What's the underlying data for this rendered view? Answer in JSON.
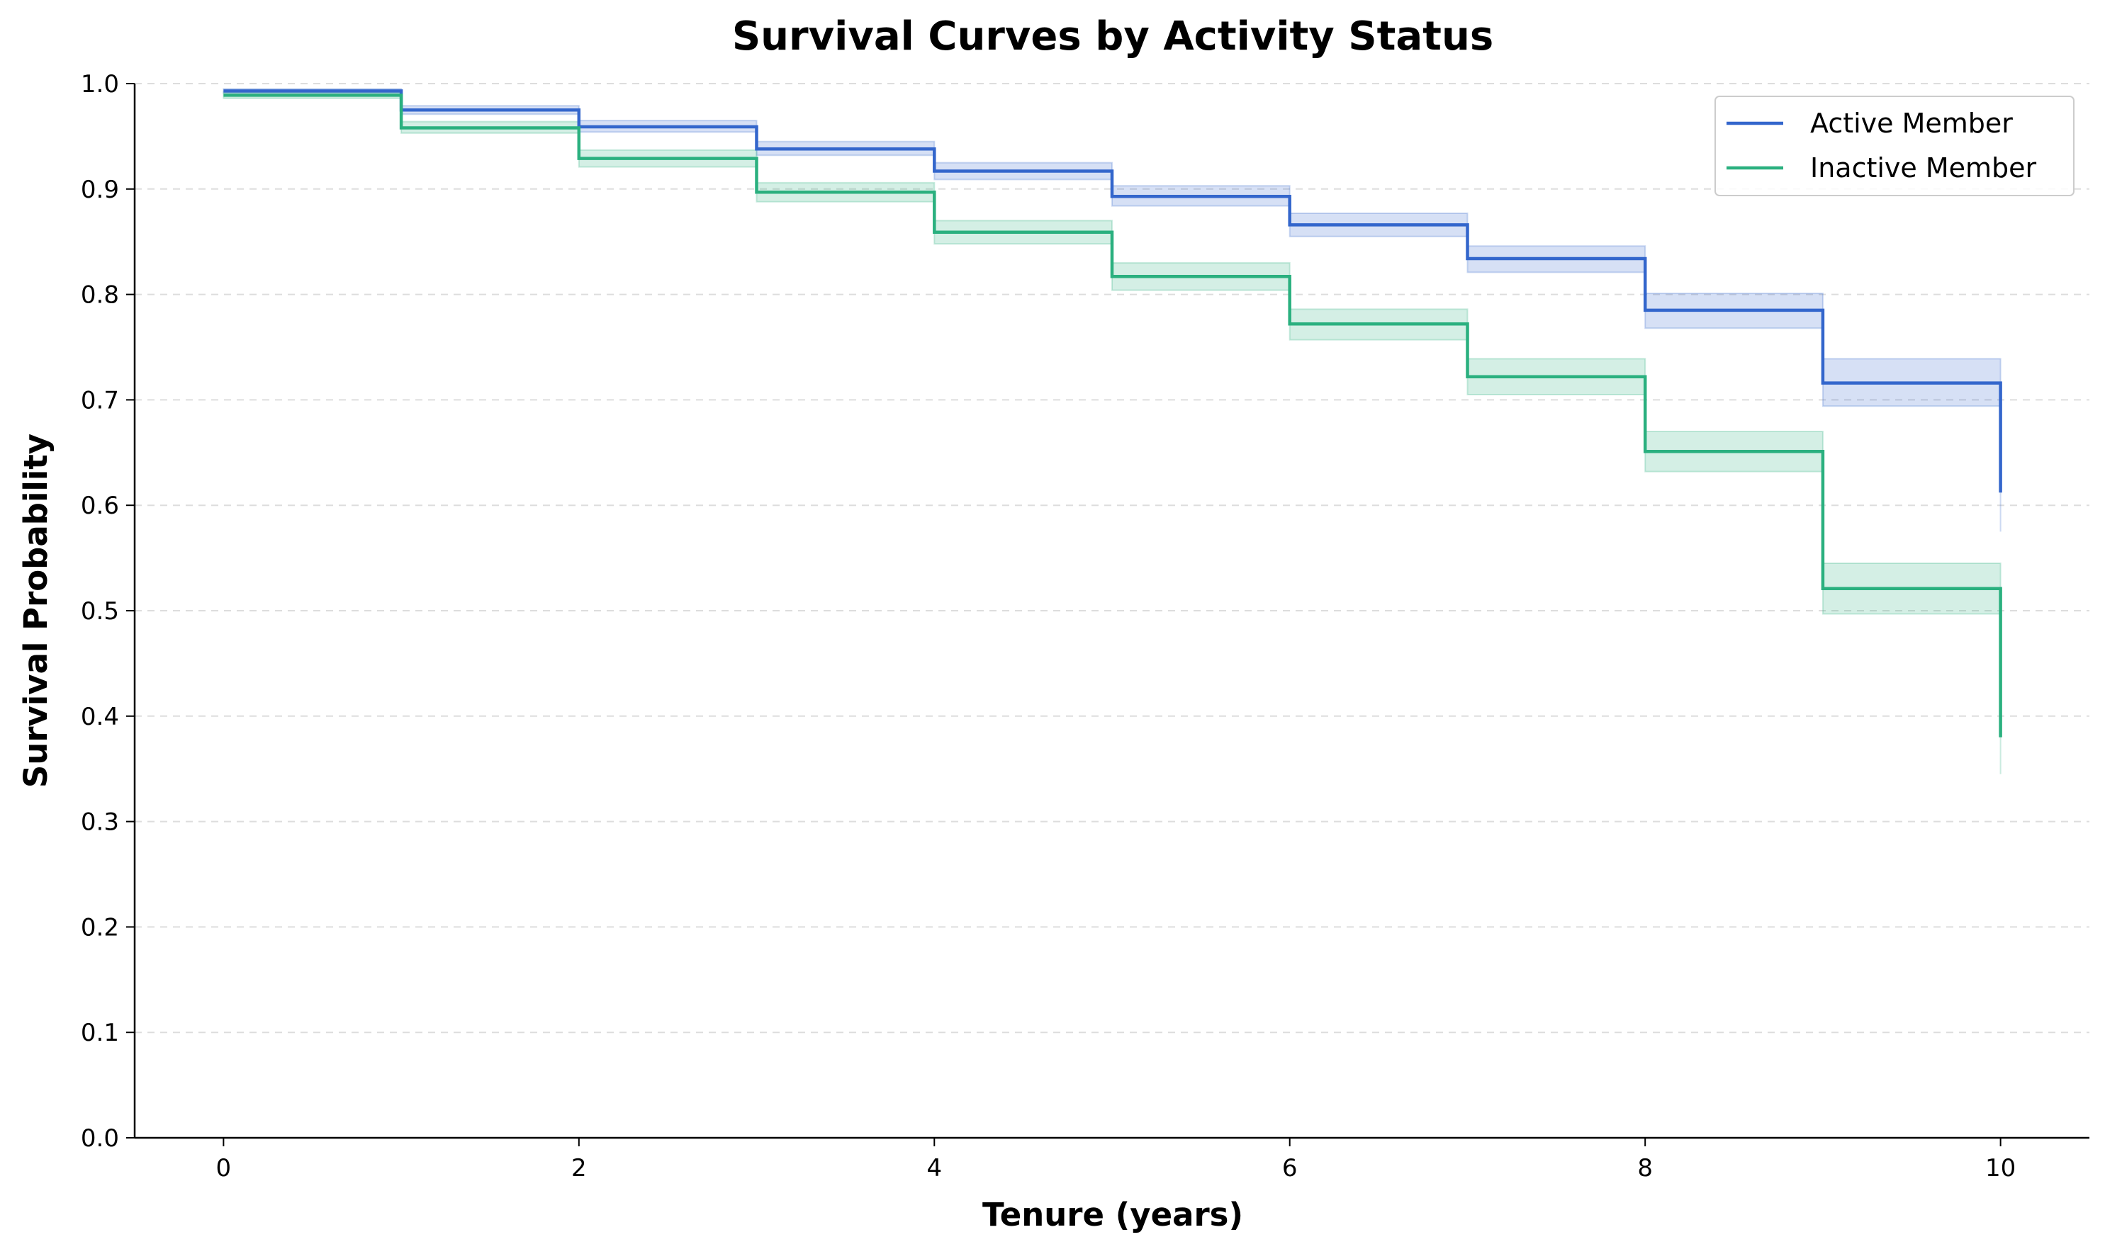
{
  "chart_data": {
    "type": "line",
    "step": true,
    "title": "Survival Curves by Activity Status",
    "xlabel": "Tenure (years)",
    "ylabel": "Survival Probability",
    "xlim": [
      -0.5,
      10.5
    ],
    "ylim": [
      0,
      1.0
    ],
    "xticks": [
      0,
      2,
      4,
      6,
      8,
      10
    ],
    "yticks": [
      0.0,
      0.1,
      0.2,
      0.3,
      0.4,
      0.5,
      0.6,
      0.7,
      0.8,
      0.9,
      1.0
    ],
    "grid": "horizontal-dashed",
    "legend_position": "top-right",
    "x": [
      0,
      1,
      2,
      3,
      4,
      5,
      6,
      7,
      8,
      9,
      10
    ],
    "series": [
      {
        "name": "Active Member",
        "color": "#3366cc",
        "values": [
          0.993,
          0.975,
          0.959,
          0.938,
          0.917,
          0.893,
          0.866,
          0.834,
          0.785,
          0.716,
          0.612
        ],
        "ci_lower": [
          0.991,
          0.971,
          0.954,
          0.932,
          0.909,
          0.884,
          0.855,
          0.821,
          0.768,
          0.694,
          0.575
        ],
        "ci_upper": [
          0.995,
          0.979,
          0.965,
          0.945,
          0.925,
          0.903,
          0.877,
          0.846,
          0.801,
          0.739,
          0.65
        ]
      },
      {
        "name": "Inactive Member",
        "color": "#2ab07f",
        "values": [
          0.989,
          0.958,
          0.929,
          0.897,
          0.859,
          0.817,
          0.772,
          0.722,
          0.651,
          0.521,
          0.38
        ],
        "ci_lower": [
          0.986,
          0.953,
          0.921,
          0.888,
          0.848,
          0.804,
          0.757,
          0.705,
          0.632,
          0.497,
          0.345
        ],
        "ci_upper": [
          0.992,
          0.964,
          0.937,
          0.906,
          0.87,
          0.83,
          0.786,
          0.739,
          0.67,
          0.545,
          0.415
        ]
      }
    ]
  }
}
